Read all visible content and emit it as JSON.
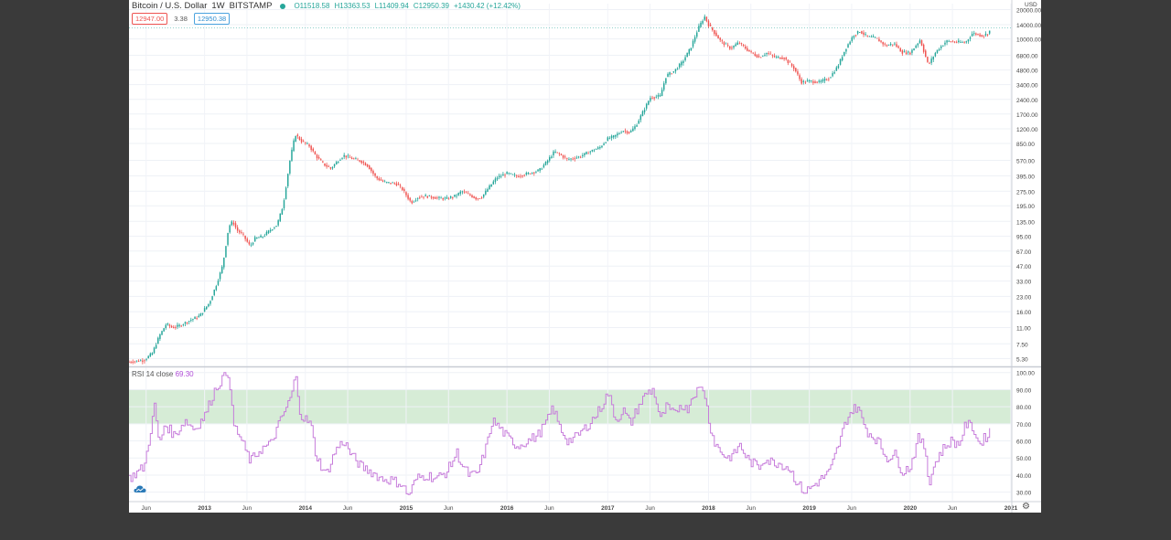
{
  "header": {
    "symbol": "Bitcoin / U.S. Dollar",
    "interval": "1W",
    "exchange": "BITSTAMP",
    "open": "O11518.58",
    "high": "H13363.53",
    "low": "L11409.94",
    "close": "C12950.39",
    "change": "+1430.42 (+12.42%)",
    "bid": "12947.00",
    "spread": "3.38",
    "ask": "12950.38"
  },
  "price_axis_unit": "USD",
  "price_ticks": [
    "20000.00",
    "14000.00",
    "10000.00",
    "6800.00",
    "4800.00",
    "3400.00",
    "2400.00",
    "1700.00",
    "1200.00",
    "850.00",
    "570.00",
    "395.00",
    "275.00",
    "195.00",
    "135.00",
    "95.00",
    "67.00",
    "47.00",
    "33.00",
    "23.00",
    "16.00",
    "11.00",
    "7.50",
    "5.30"
  ],
  "rsi": {
    "label": "RSI",
    "params": "14 close",
    "value": "69.30",
    "ticks": [
      "100.00",
      "90.00",
      "80.00",
      "70.00",
      "60.00",
      "50.00",
      "40.00",
      "30.00"
    ],
    "band": [
      70,
      90
    ]
  },
  "time_labels": [
    "Jun",
    "2013",
    "Jun",
    "2014",
    "Jun",
    "2015",
    "Jun",
    "2016",
    "Jun",
    "2017",
    "Jun",
    "2018",
    "Jun",
    "2019",
    "Jun",
    "2020",
    "Jun",
    "2021"
  ],
  "colors": {
    "up": "#26a69a",
    "down": "#ef5350",
    "rsi": "#c77ddb",
    "band": "#d6ecd6",
    "bg": "#ffffff",
    "frame": "#3a3a3a"
  },
  "icons": {
    "logo": "tradingview-cloud-icon",
    "settings": "gear-icon"
  },
  "chart_data": {
    "type": "candlestick",
    "y_scale": "log",
    "ylim": [
      4.5,
      23000
    ],
    "xlim": [
      2012.25,
      2021.0
    ],
    "price_keys": [
      [
        2012.25,
        4.9
      ],
      [
        2012.4,
        5.1
      ],
      [
        2012.48,
        6.0
      ],
      [
        2012.55,
        9.0
      ],
      [
        2012.62,
        12.0
      ],
      [
        2012.68,
        11.0
      ],
      [
        2012.75,
        11.5
      ],
      [
        2012.85,
        13.0
      ],
      [
        2012.95,
        14.5
      ],
      [
        2013.05,
        20.0
      ],
      [
        2013.12,
        31.0
      ],
      [
        2013.18,
        48.0
      ],
      [
        2013.24,
        120.0
      ],
      [
        2013.28,
        135.0
      ],
      [
        2013.32,
        110.0
      ],
      [
        2013.38,
        98.0
      ],
      [
        2013.45,
        75.0
      ],
      [
        2013.5,
        90.0
      ],
      [
        2013.58,
        95.0
      ],
      [
        2013.65,
        110.0
      ],
      [
        2013.72,
        125.0
      ],
      [
        2013.78,
        200.0
      ],
      [
        2013.85,
        600.0
      ],
      [
        2013.9,
        1050.0
      ],
      [
        2013.96,
        900.0
      ],
      [
        2014.04,
        800.0
      ],
      [
        2014.1,
        640.0
      ],
      [
        2014.18,
        520.0
      ],
      [
        2014.25,
        470.0
      ],
      [
        2014.32,
        560.0
      ],
      [
        2014.38,
        640.0
      ],
      [
        2014.45,
        600.0
      ],
      [
        2014.55,
        560.0
      ],
      [
        2014.62,
        500.0
      ],
      [
        2014.7,
        380.0
      ],
      [
        2014.78,
        340.0
      ],
      [
        2014.9,
        330.0
      ],
      [
        2014.96,
        290.0
      ],
      [
        2015.05,
        210.0
      ],
      [
        2015.12,
        240.0
      ],
      [
        2015.2,
        245.0
      ],
      [
        2015.3,
        235.0
      ],
      [
        2015.4,
        230.0
      ],
      [
        2015.5,
        250.0
      ],
      [
        2015.55,
        275.0
      ],
      [
        2015.62,
        255.0
      ],
      [
        2015.7,
        230.0
      ],
      [
        2015.75,
        240.0
      ],
      [
        2015.82,
        300.0
      ],
      [
        2015.9,
        380.0
      ],
      [
        2016.0,
        420.0
      ],
      [
        2016.1,
        390.0
      ],
      [
        2016.22,
        420.0
      ],
      [
        2016.32,
        450.0
      ],
      [
        2016.4,
        560.0
      ],
      [
        2016.47,
        700.0
      ],
      [
        2016.52,
        660.0
      ],
      [
        2016.6,
        580.0
      ],
      [
        2016.72,
        620.0
      ],
      [
        2016.82,
        700.0
      ],
      [
        2016.92,
        770.0
      ],
      [
        2017.0,
        950.0
      ],
      [
        2017.06,
        1000.0
      ],
      [
        2017.15,
        1150.0
      ],
      [
        2017.22,
        1100.0
      ],
      [
        2017.28,
        1300.0
      ],
      [
        2017.35,
        1800.0
      ],
      [
        2017.42,
        2500.0
      ],
      [
        2017.52,
        2600.0
      ],
      [
        2017.58,
        4200.0
      ],
      [
        2017.66,
        4700.0
      ],
      [
        2017.74,
        5800.0
      ],
      [
        2017.82,
        8000.0
      ],
      [
        2017.9,
        13000.0
      ],
      [
        2017.96,
        17000.0
      ],
      [
        2018.0,
        14000.0
      ],
      [
        2018.06,
        11500.0
      ],
      [
        2018.12,
        9500.0
      ],
      [
        2018.22,
        8000.0
      ],
      [
        2018.3,
        9200.0
      ],
      [
        2018.4,
        7500.0
      ],
      [
        2018.5,
        6500.0
      ],
      [
        2018.58,
        7200.0
      ],
      [
        2018.66,
        6500.0
      ],
      [
        2018.75,
        6400.0
      ],
      [
        2018.85,
        5000.0
      ],
      [
        2018.92,
        3600.0
      ],
      [
        2019.0,
        3700.0
      ],
      [
        2019.1,
        3600.0
      ],
      [
        2019.2,
        4000.0
      ],
      [
        2019.28,
        5200.0
      ],
      [
        2019.36,
        8000.0
      ],
      [
        2019.44,
        11000.0
      ],
      [
        2019.5,
        12000.0
      ],
      [
        2019.58,
        10500.0
      ],
      [
        2019.66,
        10200.0
      ],
      [
        2019.76,
        8500.0
      ],
      [
        2019.84,
        9000.0
      ],
      [
        2019.92,
        7300.0
      ],
      [
        2020.0,
        7200.0
      ],
      [
        2020.1,
        9800.0
      ],
      [
        2020.18,
        5400.0
      ],
      [
        2020.26,
        7500.0
      ],
      [
        2020.36,
        9500.0
      ],
      [
        2020.45,
        9300.0
      ],
      [
        2020.55,
        9200.0
      ],
      [
        2020.62,
        11500.0
      ],
      [
        2020.72,
        10800.0
      ],
      [
        2020.78,
        11500.0
      ],
      [
        2020.8,
        12950.0
      ]
    ],
    "rsi_keys": [
      [
        2012.25,
        38
      ],
      [
        2012.4,
        45
      ],
      [
        2012.5,
        80
      ],
      [
        2012.55,
        57
      ],
      [
        2012.6,
        70
      ],
      [
        2012.7,
        63
      ],
      [
        2012.8,
        72
      ],
      [
        2012.9,
        67
      ],
      [
        2013.0,
        75
      ],
      [
        2013.1,
        90
      ],
      [
        2013.2,
        99
      ],
      [
        2013.24,
        100
      ],
      [
        2013.28,
        70
      ],
      [
        2013.35,
        62
      ],
      [
        2013.45,
        48
      ],
      [
        2013.55,
        55
      ],
      [
        2013.65,
        58
      ],
      [
        2013.75,
        72
      ],
      [
        2013.85,
        85
      ],
      [
        2013.9,
        98
      ],
      [
        2013.95,
        75
      ],
      [
        2014.05,
        70
      ],
      [
        2014.1,
        52
      ],
      [
        2014.2,
        40
      ],
      [
        2014.3,
        55
      ],
      [
        2014.38,
        60
      ],
      [
        2014.45,
        52
      ],
      [
        2014.55,
        45
      ],
      [
        2014.65,
        42
      ],
      [
        2014.75,
        38
      ],
      [
        2014.85,
        37
      ],
      [
        2014.95,
        35
      ],
      [
        2015.02,
        28
      ],
      [
        2015.1,
        38
      ],
      [
        2015.2,
        40
      ],
      [
        2015.3,
        38
      ],
      [
        2015.4,
        42
      ],
      [
        2015.5,
        53
      ],
      [
        2015.55,
        46
      ],
      [
        2015.62,
        40
      ],
      [
        2015.7,
        40
      ],
      [
        2015.8,
        58
      ],
      [
        2015.85,
        72
      ],
      [
        2015.92,
        68
      ],
      [
        2016.0,
        62
      ],
      [
        2016.1,
        57
      ],
      [
        2016.2,
        60
      ],
      [
        2016.3,
        63
      ],
      [
        2016.4,
        72
      ],
      [
        2016.45,
        80
      ],
      [
        2016.52,
        68
      ],
      [
        2016.6,
        60
      ],
      [
        2016.68,
        62
      ],
      [
        2016.78,
        68
      ],
      [
        2016.88,
        75
      ],
      [
        2016.95,
        82
      ],
      [
        2017.0,
        88
      ],
      [
        2017.08,
        72
      ],
      [
        2017.15,
        78
      ],
      [
        2017.22,
        70
      ],
      [
        2017.3,
        80
      ],
      [
        2017.38,
        88
      ],
      [
        2017.45,
        90
      ],
      [
        2017.52,
        72
      ],
      [
        2017.58,
        80
      ],
      [
        2017.66,
        75
      ],
      [
        2017.72,
        82
      ],
      [
        2017.78,
        78
      ],
      [
        2017.85,
        88
      ],
      [
        2017.9,
        90
      ],
      [
        2017.95,
        91
      ],
      [
        2018.0,
        72
      ],
      [
        2018.05,
        60
      ],
      [
        2018.1,
        55
      ],
      [
        2018.18,
        50
      ],
      [
        2018.25,
        52
      ],
      [
        2018.3,
        58
      ],
      [
        2018.4,
        48
      ],
      [
        2018.5,
        45
      ],
      [
        2018.55,
        50
      ],
      [
        2018.6,
        48
      ],
      [
        2018.7,
        47
      ],
      [
        2018.8,
        44
      ],
      [
        2018.88,
        35
      ],
      [
        2018.95,
        30
      ],
      [
        2019.02,
        33
      ],
      [
        2019.1,
        37
      ],
      [
        2019.2,
        42
      ],
      [
        2019.3,
        60
      ],
      [
        2019.36,
        72
      ],
      [
        2019.42,
        78
      ],
      [
        2019.48,
        80
      ],
      [
        2019.52,
        72
      ],
      [
        2019.58,
        65
      ],
      [
        2019.68,
        60
      ],
      [
        2019.76,
        50
      ],
      [
        2019.85,
        52
      ],
      [
        2019.92,
        42
      ],
      [
        2020.0,
        45
      ],
      [
        2020.08,
        62
      ],
      [
        2020.15,
        55
      ],
      [
        2020.18,
        35
      ],
      [
        2020.25,
        48
      ],
      [
        2020.32,
        55
      ],
      [
        2020.4,
        60
      ],
      [
        2020.48,
        58
      ],
      [
        2020.55,
        70
      ],
      [
        2020.62,
        68
      ],
      [
        2020.68,
        58
      ],
      [
        2020.74,
        62
      ],
      [
        2020.78,
        64
      ],
      [
        2020.8,
        69.3
      ]
    ],
    "rsi_ylim": [
      25,
      102
    ]
  }
}
